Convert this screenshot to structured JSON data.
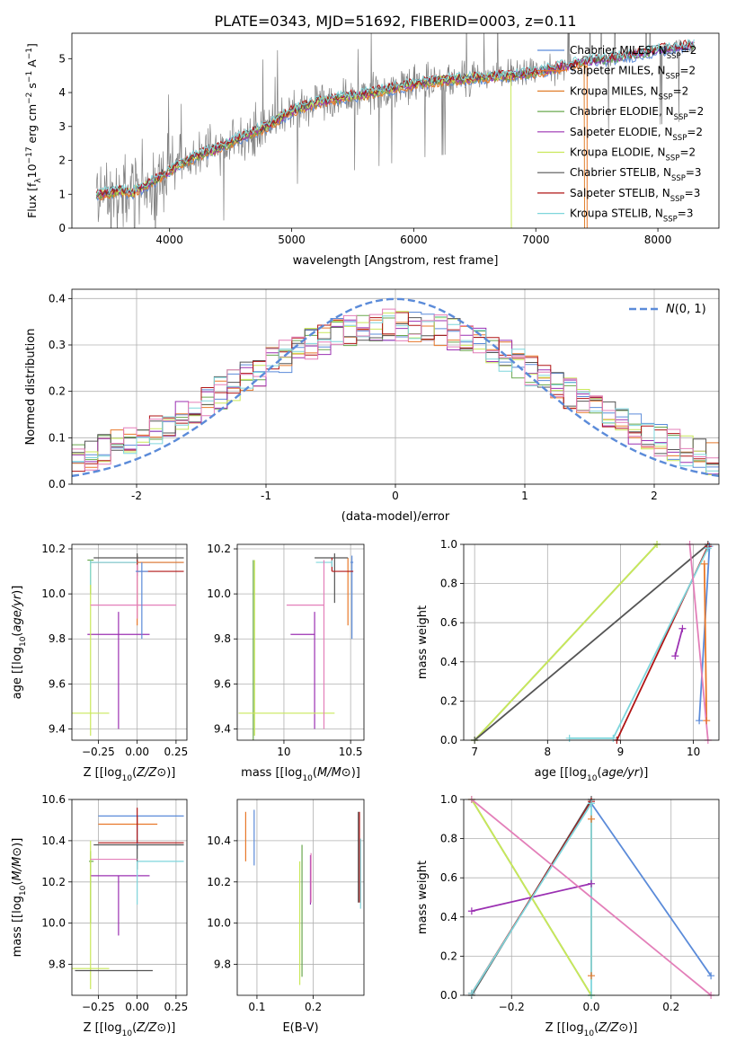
{
  "figure": {
    "title": "PLATE=0343, MJD=51692, FIBERID=0003, z=0.11"
  },
  "colors": {
    "chabrier_miles": "#5b8bd9",
    "salpeter_miles": "#e8782a",
    "kroupa_miles": "#e07f2c",
    "chabrier_elodie": "#6aa84f",
    "salpeter_elodie": "#9b30b2",
    "kroupa_elodie": "#c9e85a",
    "chabrier_stelib": "#555555",
    "salpeter_stelib": "#b01515",
    "kroupa_stelib": "#7fd6dc",
    "pink": "#e37fb9",
    "spectrum": "#808080",
    "normal_curve": "#5b8bd9",
    "grid": "#b0b0b0"
  },
  "chart_data": [
    {
      "id": "spectrum",
      "type": "line",
      "title": "PLATE=0343, MJD=51692, FIBERID=0003, z=0.11",
      "xlabel": "wavelength [Angstrom, rest frame]",
      "ylabel": "Flux [f_λ 10^-17 erg cm^-2 s^-1 A^-1]",
      "ylabel_parts": {
        "a": "Flux [f",
        "b": "λ",
        "c": "10",
        "d": "−17",
        "e": " erg cm",
        "f": "−2",
        "g": " s",
        "h": "−1",
        "i": " A",
        "j": "−1",
        "k": "]"
      },
      "xlim": [
        3200,
        8500
      ],
      "ylim": [
        0,
        5.75
      ],
      "xticks": [
        4000,
        5000,
        6000,
        7000,
        8000
      ],
      "yticks": [
        0,
        1,
        2,
        3,
        4,
        5
      ],
      "grid": false,
      "legend_position": "top-right",
      "legend": [
        {
          "name": "Chabrier MILES, N",
          "sub": "SSP",
          "tail": "=2",
          "color": "#5b8bd9"
        },
        {
          "name": "Salpeter MILES, N",
          "sub": "SSP",
          "tail": "=2",
          "color": "#e8782a"
        },
        {
          "name": "Kroupa MILES, N",
          "sub": "SSP",
          "tail": "=2",
          "color": "#e07f2c"
        },
        {
          "name": "Chabrier ELODIE, N",
          "sub": "SSP",
          "tail": "=2",
          "color": "#6aa84f"
        },
        {
          "name": "Salpeter ELODIE, N",
          "sub": "SSP",
          "tail": "=2",
          "color": "#9b30b2"
        },
        {
          "name": "Kroupa ELODIE, N",
          "sub": "SSP",
          "tail": "=2",
          "color": "#c9e85a"
        },
        {
          "name": "Chabrier STELIB, N",
          "sub": "SSP",
          "tail": "=3",
          "color": "#555555"
        },
        {
          "name": "Salpeter STELIB, N",
          "sub": "SSP",
          "tail": "=3",
          "color": "#b01515"
        },
        {
          "name": "Kroupa STELIB, N",
          "sub": "SSP",
          "tail": "=3",
          "color": "#7fd6dc"
        }
      ],
      "model_curve": {
        "x": [
          3400,
          3500,
          3600,
          3700,
          3800,
          3900,
          4000,
          4200,
          4400,
          4600,
          4800,
          5000,
          5200,
          5400,
          5600,
          5800,
          6000,
          6200,
          6400,
          6600,
          6800,
          7000,
          7200,
          7400,
          7600,
          7800,
          8000,
          8200,
          8300
        ],
        "y": [
          1.0,
          1.05,
          1.1,
          1.05,
          1.25,
          1.45,
          1.7,
          2.1,
          2.35,
          2.7,
          3.0,
          3.45,
          3.7,
          3.85,
          3.95,
          4.1,
          4.25,
          4.35,
          4.4,
          4.45,
          4.5,
          4.6,
          4.75,
          4.9,
          5.0,
          5.1,
          5.25,
          5.35,
          5.4
        ]
      }
    },
    {
      "id": "residuals",
      "type": "histogram",
      "xlabel": "(data-model)/error",
      "ylabel": "Normed distribution",
      "xlim": [
        -2.5,
        2.5
      ],
      "ylim": [
        0,
        0.42
      ],
      "xticks": [
        -2,
        -1,
        0,
        1,
        2
      ],
      "yticks": [
        0.0,
        0.1,
        0.2,
        0.3,
        0.4
      ],
      "grid": true,
      "legend_position": "top-right",
      "legend": [
        {
          "name": "N(0,1)",
          "color": "#5b8bd9",
          "style": "dashed"
        }
      ],
      "bin_width": 0.1,
      "normal": {
        "mean": 0,
        "sd": 1
      }
    },
    {
      "id": "age_vs_Z",
      "type": "errorbar",
      "xlabel": "Z [log10(Z/Z⊙)]",
      "ylabel": "age [log10(age/yr)]",
      "xlim": [
        -0.42,
        0.32
      ],
      "ylim": [
        9.35,
        10.22
      ],
      "xticks": [
        -0.25,
        0.0,
        0.25
      ],
      "xticklabels": [
        "−0.25",
        "0.00",
        "0.25"
      ],
      "yticks": [
        9.4,
        9.6,
        9.8,
        10.0,
        10.2
      ],
      "grid": true,
      "points": [
        {
          "x": 0.0,
          "xerr": [
            0.3,
            0.3
          ],
          "y": 10.14,
          "yerr": [
            0.06,
            0.03
          ],
          "color": "#5b8bd9"
        },
        {
          "x": 0.0,
          "xerr": [
            0.3,
            0.3
          ],
          "y": 10.14,
          "yerr": [
            0.28,
            0.03
          ],
          "color": "#e8782a"
        },
        {
          "x": -0.3,
          "xerr": [
            0.02,
            0.02
          ],
          "y": 10.15,
          "yerr": [
            0.15,
            0.0
          ],
          "color": "#6aa84f"
        },
        {
          "x": -0.12,
          "xerr": [
            0.2,
            0.2
          ],
          "y": 9.82,
          "yerr": [
            0.42,
            0.1
          ],
          "color": "#9b30b2"
        },
        {
          "x": -0.3,
          "xerr": [
            0.12,
            0.12
          ],
          "y": 9.47,
          "yerr": [
            0.1,
            0.68
          ],
          "color": "#c9e85a"
        },
        {
          "x": 0.0,
          "xerr": [
            0.28,
            0.3
          ],
          "y": 10.16,
          "yerr": [
            0.02,
            0.02
          ],
          "color": "#555555"
        },
        {
          "x": 0.0,
          "xerr": [
            0.0,
            0.3
          ],
          "y": 10.1,
          "yerr": [
            0.0,
            0.05
          ],
          "color": "#b01515"
        },
        {
          "x": -0.3,
          "xerr": [
            0.0,
            0.3
          ],
          "y": 10.14,
          "yerr": [
            0.1,
            0.01
          ],
          "color": "#7fd6dc"
        },
        {
          "x": 0.0,
          "xerr": [
            0.3,
            0.25
          ],
          "y": 9.95,
          "yerr": [
            0.06,
            0.18
          ],
          "color": "#e37fb9"
        },
        {
          "x": 0.03,
          "xerr": [
            0.04,
            0.04
          ],
          "y": 10.1,
          "yerr": [
            0.3,
            0.04
          ],
          "color": "#5b8bd9"
        }
      ]
    },
    {
      "id": "age_vs_mass",
      "type": "errorbar",
      "xlabel": "mass [log10(M/M⊙)]",
      "ylabel": "",
      "xlim": [
        9.65,
        10.6
      ],
      "ylim": [
        9.35,
        10.22
      ],
      "xticks": [
        10.0,
        10.5
      ],
      "yticks": [
        9.4,
        9.6,
        9.8,
        10.0,
        10.2
      ],
      "grid": true,
      "points": [
        {
          "x": 10.51,
          "xerr": [
            0.01,
            0.01
          ],
          "y": 10.14,
          "yerr": [
            0.34,
            0.03
          ],
          "color": "#5b8bd9"
        },
        {
          "x": 10.48,
          "xerr": [
            0.0,
            0.0
          ],
          "y": 10.1,
          "yerr": [
            0.24,
            0.06
          ],
          "color": "#e8782a"
        },
        {
          "x": 9.77,
          "xerr": [
            0.0,
            0.0
          ],
          "y": 10.15,
          "yerr": [
            0.8,
            0.0
          ],
          "color": "#6aa84f"
        },
        {
          "x": 10.23,
          "xerr": [
            0.18,
            0.0
          ],
          "y": 9.82,
          "yerr": [
            0.42,
            0.1
          ],
          "color": "#9b30b2"
        },
        {
          "x": 9.78,
          "xerr": [
            0.12,
            0.6
          ],
          "y": 9.47,
          "yerr": [
            0.1,
            0.68
          ],
          "color": "#c9e85a"
        },
        {
          "x": 10.38,
          "xerr": [
            0.15,
            0.1
          ],
          "y": 10.16,
          "yerr": [
            0.2,
            0.02
          ],
          "color": "#555555"
        },
        {
          "x": 10.36,
          "xerr": [
            0.0,
            0.16
          ],
          "y": 10.1,
          "yerr": [
            0.0,
            0.06
          ],
          "color": "#b01515"
        },
        {
          "x": 10.36,
          "xerr": [
            0.12,
            0.0
          ],
          "y": 10.14,
          "yerr": [
            0.02,
            0.01
          ],
          "color": "#7fd6dc"
        },
        {
          "x": 10.3,
          "xerr": [
            0.28,
            0.0
          ],
          "y": 9.95,
          "yerr": [
            0.55,
            0.2
          ],
          "color": "#e37fb9"
        }
      ]
    },
    {
      "id": "weight_vs_age",
      "type": "line",
      "xlabel": "age [log10(age/yr)]",
      "ylabel": "mass weight",
      "xlim": [
        6.85,
        10.35
      ],
      "ylim": [
        0.0,
        1.0
      ],
      "xticks": [
        7,
        8,
        9,
        10
      ],
      "yticks": [
        0.0,
        0.2,
        0.4,
        0.6,
        0.8,
        1.0
      ],
      "grid": true,
      "series": [
        {
          "x": [
            10.08,
            10.22
          ],
          "y": [
            0.1,
            0.99
          ],
          "color": "#5b8bd9"
        },
        {
          "x": [
            10.15,
            10.18
          ],
          "y": [
            0.9,
            0.1
          ],
          "color": "#e8782a"
        },
        {
          "x": [
            7.0,
            9.5
          ],
          "y": [
            0.0,
            1.0
          ],
          "color": "#6aa84f"
        },
        {
          "x": [
            9.75,
            9.85
          ],
          "y": [
            0.43,
            0.57
          ],
          "color": "#9b30b2"
        },
        {
          "x": [
            7.0,
            9.5
          ],
          "y": [
            0.0,
            1.0
          ],
          "color": "#c9e85a"
        },
        {
          "x": [
            7.0,
            10.2
          ],
          "y": [
            0.0,
            1.0
          ],
          "color": "#555555"
        },
        {
          "x": [
            8.95,
            10.2
          ],
          "y": [
            0.0,
            0.99
          ],
          "color": "#b01515"
        },
        {
          "x": [
            8.3,
            8.9,
            10.2
          ],
          "y": [
            0.01,
            0.01,
            0.98
          ],
          "color": "#7fd6dc"
        },
        {
          "x": [
            9.95,
            10.2
          ],
          "y": [
            1.0,
            0.0
          ],
          "color": "#e37fb9"
        }
      ]
    },
    {
      "id": "mass_vs_Z",
      "type": "errorbar",
      "xlabel": "Z [log10(Z/Z⊙)]",
      "ylabel": "mass [log10(M/M⊙)]",
      "xlim": [
        -0.42,
        0.32
      ],
      "ylim": [
        9.65,
        10.6
      ],
      "xticks": [
        -0.25,
        0.0,
        0.25
      ],
      "xticklabels": [
        "−0.25",
        "0.00",
        "0.25"
      ],
      "yticks": [
        9.8,
        10.0,
        10.2,
        10.4,
        10.6
      ],
      "grid": true,
      "points": [
        {
          "x": 0.0,
          "xerr": [
            0.25,
            0.3
          ],
          "y": 10.52,
          "yerr": [
            0.16,
            0.0
          ],
          "color": "#5b8bd9"
        },
        {
          "x": 0.0,
          "xerr": [
            0.25,
            0.13
          ],
          "y": 10.48,
          "yerr": [
            0.0,
            0.04
          ],
          "color": "#e8782a"
        },
        {
          "x": -0.3,
          "xerr": [
            0.01,
            0.02
          ],
          "y": 10.3,
          "yerr": [
            0.3,
            0.05
          ],
          "color": "#6aa84f"
        },
        {
          "x": -0.12,
          "xerr": [
            0.18,
            0.2
          ],
          "y": 10.23,
          "yerr": [
            0.29,
            0.0
          ],
          "color": "#9b30b2"
        },
        {
          "x": -0.3,
          "xerr": [
            0.12,
            0.12
          ],
          "y": 9.78,
          "yerr": [
            0.1,
            0.62
          ],
          "color": "#c9e85a"
        },
        {
          "x": 0.0,
          "xerr": [
            0.28,
            0.3
          ],
          "y": 10.38,
          "yerr": [
            0.12,
            0.0
          ],
          "color": "#555555"
        },
        {
          "x": 0.0,
          "xerr": [
            0.25,
            0.3
          ],
          "y": 10.39,
          "yerr": [
            0.0,
            0.17
          ],
          "color": "#b01515"
        },
        {
          "x": 0.0,
          "xerr": [
            0.0,
            0.3
          ],
          "y": 10.3,
          "yerr": [
            0.21,
            0.0
          ],
          "color": "#7fd6dc"
        },
        {
          "x": 0.0,
          "xerr": [
            0.3,
            0.0
          ],
          "y": 10.31,
          "yerr": [
            0.0,
            0.0
          ],
          "color": "#e37fb9"
        },
        {
          "x": -0.1,
          "xerr": [
            0.3,
            0.2
          ],
          "y": 9.77,
          "yerr": [
            0.0,
            0.0
          ],
          "color": "#555555"
        }
      ]
    },
    {
      "id": "mass_vs_ebv",
      "type": "errorbar",
      "xlabel": "E(B-V)",
      "ylabel": "",
      "xlim": [
        0.065,
        0.29
      ],
      "ylim": [
        9.65,
        10.6
      ],
      "xticks": [
        0.1,
        0.2
      ],
      "yticks": [
        9.8,
        10.0,
        10.2,
        10.4
      ],
      "grid": true,
      "points": [
        {
          "x": 0.095,
          "xerr": [
            0,
            0
          ],
          "y": 10.44,
          "yerr": [
            0.16,
            0.11
          ],
          "color": "#5b8bd9"
        },
        {
          "x": 0.08,
          "xerr": [
            0,
            0
          ],
          "y": 10.42,
          "yerr": [
            0.12,
            0.12
          ],
          "color": "#e8782a"
        },
        {
          "x": 0.18,
          "xerr": [
            0,
            0
          ],
          "y": 10.06,
          "yerr": [
            0.32,
            0.32
          ],
          "color": "#6aa84f"
        },
        {
          "x": 0.195,
          "xerr": [
            0,
            0
          ],
          "y": 10.21,
          "yerr": [
            0.12,
            0.12
          ],
          "color": "#9b30b2"
        },
        {
          "x": 0.176,
          "xerr": [
            0,
            0
          ],
          "y": 10.0,
          "yerr": [
            0.3,
            0.3
          ],
          "color": "#c9e85a"
        },
        {
          "x": 0.28,
          "xerr": [
            0,
            0
          ],
          "y": 10.32,
          "yerr": [
            0.22,
            0.22
          ],
          "color": "#555555"
        },
        {
          "x": 0.282,
          "xerr": [
            0,
            0
          ],
          "y": 10.32,
          "yerr": [
            0.22,
            0.22
          ],
          "color": "#b01515"
        },
        {
          "x": 0.284,
          "xerr": [
            0,
            0
          ],
          "y": 10.24,
          "yerr": [
            0.17,
            0.17
          ],
          "color": "#7fd6dc"
        },
        {
          "x": 0.196,
          "xerr": [
            0,
            0
          ],
          "y": 10.22,
          "yerr": [
            0.12,
            0.12
          ],
          "color": "#e37fb9"
        }
      ]
    },
    {
      "id": "weight_vs_Z",
      "type": "line",
      "xlabel": "Z [log10(Z/Z⊙)]",
      "ylabel": "mass weight",
      "xlim": [
        -0.32,
        0.32
      ],
      "ylim": [
        0.0,
        1.0
      ],
      "xticks": [
        -0.2,
        0.0,
        0.2
      ],
      "xticklabels": [
        "−0.2",
        "0.0",
        "0.2"
      ],
      "yticks": [
        0.0,
        0.2,
        0.4,
        0.6,
        0.8,
        1.0
      ],
      "grid": true,
      "series": [
        {
          "x": [
            0.0,
            0.3
          ],
          "y": [
            0.98,
            0.1
          ],
          "color": "#5b8bd9"
        },
        {
          "x": [
            0.0,
            0.0
          ],
          "y": [
            0.9,
            0.1
          ],
          "color": "#e8782a"
        },
        {
          "x": [
            -0.3,
            0.0
          ],
          "y": [
            1.0,
            0.0
          ],
          "color": "#6aa84f"
        },
        {
          "x": [
            -0.3,
            0.0
          ],
          "y": [
            0.43,
            0.57
          ],
          "color": "#9b30b2"
        },
        {
          "x": [
            -0.3,
            0.0
          ],
          "y": [
            1.0,
            0.0
          ],
          "color": "#c9e85a"
        },
        {
          "x": [
            -0.3,
            0.0
          ],
          "y": [
            0.0,
            1.0
          ],
          "color": "#555555"
        },
        {
          "x": [
            -0.3,
            0.0
          ],
          "y": [
            0.01,
            0.99
          ],
          "color": "#b01515"
        },
        {
          "x": [
            -0.3,
            0.0,
            0.0
          ],
          "y": [
            0.01,
            0.98,
            0.0
          ],
          "color": "#7fd6dc"
        },
        {
          "x": [
            -0.3,
            0.3
          ],
          "y": [
            1.0,
            0.0
          ],
          "color": "#e37fb9"
        }
      ]
    }
  ]
}
